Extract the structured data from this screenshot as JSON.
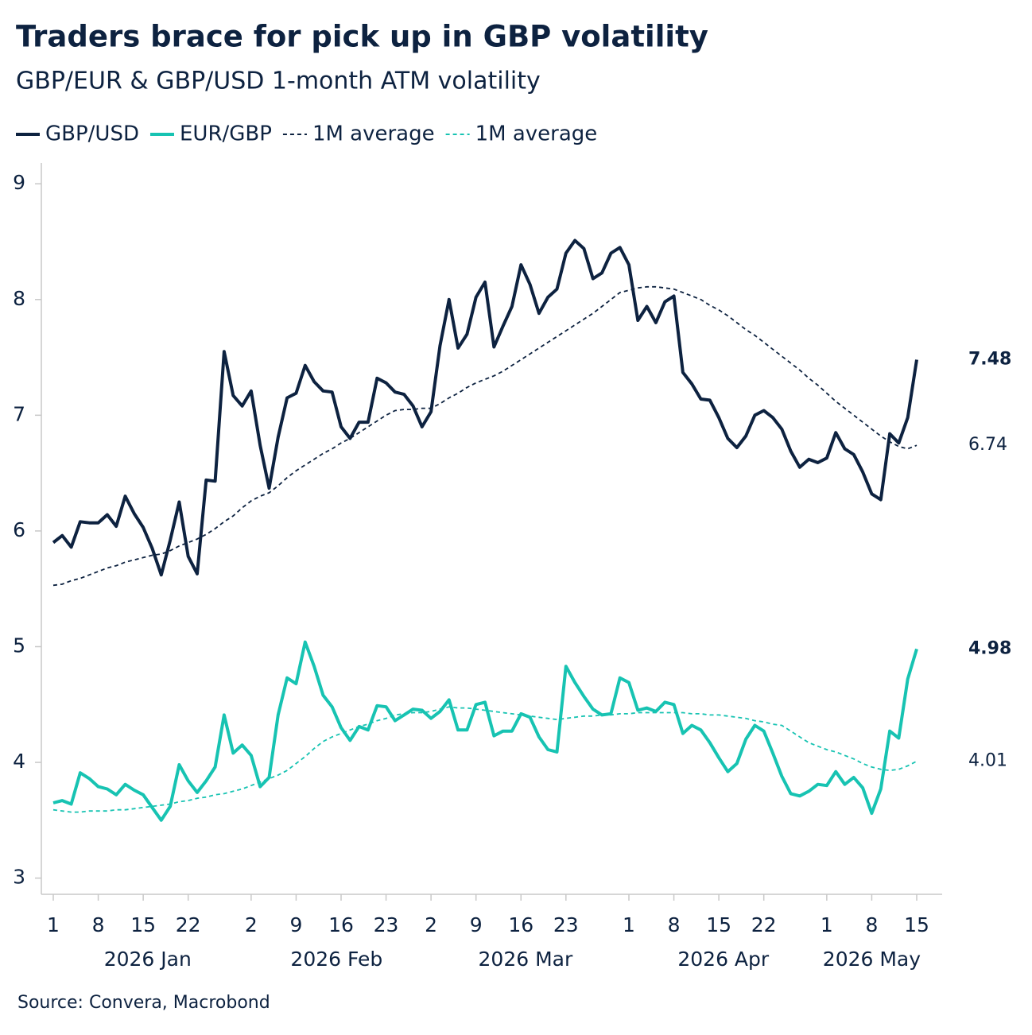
{
  "chart_data": {
    "type": "line",
    "title": "Traders brace for pick up in GBP volatility",
    "subtitle": "GBP/EUR & GBP/USD 1-month ATM volatility",
    "source": "Source: Convera, Macrobond",
    "x": [
      "2026-01-01",
      "2026-01-02",
      "2026-01-05",
      "2026-01-06",
      "2026-01-07",
      "2026-01-08",
      "2026-01-09",
      "2026-01-12",
      "2026-01-13",
      "2026-01-14",
      "2026-01-15",
      "2026-01-16",
      "2026-01-19",
      "2026-01-20",
      "2026-01-21",
      "2026-01-22",
      "2026-01-23",
      "2026-01-26",
      "2026-01-27",
      "2026-01-28",
      "2026-01-29",
      "2026-01-30",
      "2026-02-02",
      "2026-02-03",
      "2026-02-04",
      "2026-02-05",
      "2026-02-06",
      "2026-02-09",
      "2026-02-10",
      "2026-02-11",
      "2026-02-12",
      "2026-02-13",
      "2026-02-16",
      "2026-02-17",
      "2026-02-18",
      "2026-02-19",
      "2026-02-20",
      "2026-02-23",
      "2026-02-24",
      "2026-02-25",
      "2026-02-26",
      "2026-02-27",
      "2026-03-02",
      "2026-03-03",
      "2026-03-04",
      "2026-03-05",
      "2026-03-06",
      "2026-03-09",
      "2026-03-10",
      "2026-03-11",
      "2026-03-12",
      "2026-03-13",
      "2026-03-16",
      "2026-03-17",
      "2026-03-18",
      "2026-03-19",
      "2026-03-20",
      "2026-03-23",
      "2026-03-24",
      "2026-03-25",
      "2026-03-26",
      "2026-03-27",
      "2026-03-30",
      "2026-03-31",
      "2026-04-01",
      "2026-04-02",
      "2026-04-03",
      "2026-04-06",
      "2026-04-07",
      "2026-04-08",
      "2026-04-09",
      "2026-04-10",
      "2026-04-13",
      "2026-04-14",
      "2026-04-15",
      "2026-04-16",
      "2026-04-17",
      "2026-04-20",
      "2026-04-21",
      "2026-04-22",
      "2026-04-23",
      "2026-04-24",
      "2026-04-27",
      "2026-04-28",
      "2026-04-29",
      "2026-04-30",
      "2026-05-01",
      "2026-05-04",
      "2026-05-05",
      "2026-05-06",
      "2026-05-07",
      "2026-05-08",
      "2026-05-11",
      "2026-05-12",
      "2026-05-13",
      "2026-05-14",
      "2026-05-15"
    ],
    "series": [
      {
        "name": "GBP/USD",
        "color": "#0d2240",
        "dash": false,
        "values": [
          5.9,
          5.96,
          5.86,
          6.08,
          6.07,
          6.07,
          6.14,
          6.04,
          6.3,
          6.15,
          6.03,
          5.85,
          5.62,
          5.92,
          6.25,
          5.78,
          5.63,
          6.44,
          6.43,
          7.55,
          7.17,
          7.08,
          7.21,
          6.74,
          6.37,
          6.81,
          7.15,
          7.19,
          7.43,
          7.29,
          7.21,
          7.2,
          6.9,
          6.8,
          6.94,
          6.94,
          7.32,
          7.28,
          7.2,
          7.18,
          7.08,
          6.9,
          7.03,
          7.6,
          8.0,
          7.58,
          7.7,
          8.02,
          8.15,
          7.59,
          7.77,
          7.94,
          8.3,
          8.13,
          7.88,
          8.02,
          8.09,
          8.4,
          8.51,
          8.44,
          8.18,
          8.23,
          8.4,
          8.45,
          8.3,
          7.82,
          7.94,
          7.8,
          7.98,
          8.03,
          7.37,
          7.27,
          7.14,
          7.13,
          6.98,
          6.8,
          6.72,
          6.82,
          7.0,
          7.04,
          6.98,
          6.88,
          6.69,
          6.55,
          6.62,
          6.59,
          6.63,
          6.85,
          6.71,
          6.66,
          6.51,
          6.32,
          6.27,
          6.84,
          6.76,
          6.98,
          7.48
        ]
      },
      {
        "name": "EUR/GBP",
        "color": "#17c3b2",
        "dash": false,
        "values": [
          3.65,
          3.67,
          3.64,
          3.91,
          3.86,
          3.79,
          3.77,
          3.72,
          3.81,
          3.76,
          3.72,
          3.61,
          3.5,
          3.62,
          3.98,
          3.84,
          3.74,
          3.84,
          3.96,
          4.41,
          4.08,
          4.15,
          4.06,
          3.79,
          3.87,
          4.41,
          4.73,
          4.68,
          5.04,
          4.83,
          4.58,
          4.48,
          4.3,
          4.19,
          4.31,
          4.28,
          4.49,
          4.48,
          4.36,
          4.41,
          4.46,
          4.45,
          4.38,
          4.44,
          4.54,
          4.28,
          4.28,
          4.5,
          4.52,
          4.23,
          4.27,
          4.27,
          4.42,
          4.39,
          4.22,
          4.11,
          4.09,
          4.83,
          4.69,
          4.57,
          4.46,
          4.41,
          4.42,
          4.73,
          4.69,
          4.45,
          4.47,
          4.44,
          4.52,
          4.5,
          4.25,
          4.32,
          4.28,
          4.17,
          4.04,
          3.92,
          3.99,
          4.2,
          4.32,
          4.27,
          4.08,
          3.88,
          3.73,
          3.71,
          3.75,
          3.81,
          3.8,
          3.92,
          3.81,
          3.87,
          3.78,
          3.56,
          3.77,
          4.27,
          4.21,
          4.72,
          4.98
        ]
      },
      {
        "name": "1M average",
        "color": "#0d2240",
        "dash": true,
        "values": [
          5.53,
          5.54,
          5.57,
          5.59,
          5.62,
          5.65,
          5.68,
          5.7,
          5.73,
          5.75,
          5.77,
          5.79,
          5.8,
          5.83,
          5.87,
          5.9,
          5.93,
          5.97,
          6.02,
          6.08,
          6.13,
          6.2,
          6.26,
          6.3,
          6.33,
          6.39,
          6.46,
          6.52,
          6.57,
          6.62,
          6.67,
          6.71,
          6.76,
          6.8,
          6.85,
          6.9,
          6.95,
          7.0,
          7.04,
          7.05,
          7.05,
          7.06,
          7.06,
          7.1,
          7.15,
          7.19,
          7.24,
          7.28,
          7.31,
          7.34,
          7.38,
          7.43,
          7.48,
          7.53,
          7.58,
          7.63,
          7.68,
          7.73,
          7.78,
          7.83,
          7.88,
          7.94,
          8.0,
          8.06,
          8.08,
          8.1,
          8.11,
          8.11,
          8.1,
          8.09,
          8.06,
          8.03,
          8.0,
          7.95,
          7.91,
          7.86,
          7.8,
          7.74,
          7.69,
          7.63,
          7.57,
          7.51,
          7.45,
          7.39,
          7.32,
          7.26,
          7.19,
          7.12,
          7.06,
          7.0,
          6.94,
          6.88,
          6.82,
          6.77,
          6.73,
          6.71,
          6.74
        ]
      },
      {
        "name": "1M average",
        "color": "#17c3b2",
        "dash": true,
        "values": [
          3.59,
          3.58,
          3.57,
          3.57,
          3.58,
          3.58,
          3.58,
          3.59,
          3.59,
          3.6,
          3.61,
          3.62,
          3.63,
          3.64,
          3.66,
          3.67,
          3.69,
          3.7,
          3.72,
          3.73,
          3.75,
          3.77,
          3.8,
          3.83,
          3.86,
          3.89,
          3.93,
          3.99,
          4.05,
          4.12,
          4.18,
          4.22,
          4.25,
          4.28,
          4.31,
          4.33,
          4.36,
          4.38,
          4.41,
          4.42,
          4.43,
          4.43,
          4.44,
          4.46,
          4.48,
          4.47,
          4.47,
          4.46,
          4.45,
          4.44,
          4.43,
          4.42,
          4.41,
          4.4,
          4.39,
          4.38,
          4.37,
          4.38,
          4.39,
          4.4,
          4.4,
          4.41,
          4.41,
          4.42,
          4.42,
          4.43,
          4.43,
          4.43,
          4.43,
          4.43,
          4.43,
          4.42,
          4.42,
          4.41,
          4.41,
          4.4,
          4.39,
          4.38,
          4.36,
          4.35,
          4.33,
          4.32,
          4.27,
          4.22,
          4.17,
          4.14,
          4.11,
          4.09,
          4.06,
          4.03,
          3.99,
          3.96,
          3.94,
          3.93,
          3.94,
          3.97,
          4.01
        ]
      }
    ],
    "ylim": [
      2.86,
      9.18
    ],
    "yticks": [
      3,
      4,
      5,
      6,
      7,
      8,
      9
    ],
    "xticks": [
      {
        "value": "2026-01-01",
        "label": "1"
      },
      {
        "value": "2026-01-08",
        "label": "8"
      },
      {
        "value": "2026-01-15",
        "label": "15"
      },
      {
        "value": "2026-01-22",
        "label": "22"
      },
      {
        "value": "2026-02-02",
        "label": "2"
      },
      {
        "value": "2026-02-09",
        "label": "9"
      },
      {
        "value": "2026-02-16",
        "label": "16"
      },
      {
        "value": "2026-02-23",
        "label": "23"
      },
      {
        "value": "2026-03-02",
        "label": "2"
      },
      {
        "value": "2026-03-09",
        "label": "9"
      },
      {
        "value": "2026-03-16",
        "label": "16"
      },
      {
        "value": "2026-03-23",
        "label": "23"
      },
      {
        "value": "2026-04-01",
        "label": "1"
      },
      {
        "value": "2026-04-08",
        "label": "8"
      },
      {
        "value": "2026-04-15",
        "label": "15"
      },
      {
        "value": "2026-04-22",
        "label": "22"
      },
      {
        "value": "2026-05-01",
        "label": "1"
      },
      {
        "value": "2026-05-08",
        "label": "8"
      },
      {
        "value": "2026-05-15",
        "label": "15"
      }
    ],
    "xmonths": [
      {
        "value": "2026-01",
        "label": "2026 Jan"
      },
      {
        "value": "2026-02",
        "label": "2026 Feb"
      },
      {
        "value": "2026-03",
        "label": "2026 Mar"
      },
      {
        "value": "2026-04",
        "label": "2026 Apr"
      },
      {
        "value": "2026-05",
        "label": "2026 May"
      }
    ],
    "end_labels": true,
    "grid": false,
    "legend": "top-left"
  }
}
